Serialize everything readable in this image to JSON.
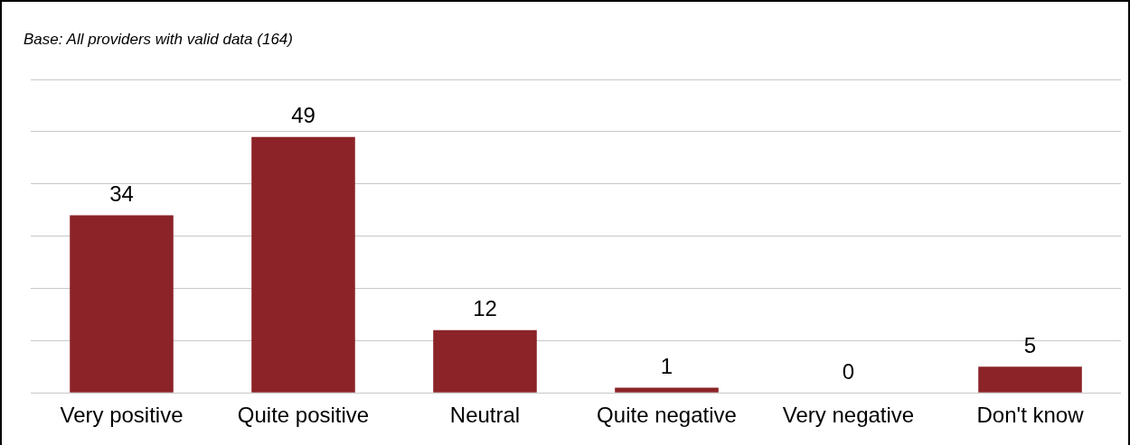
{
  "chart_data": {
    "type": "bar",
    "annotations": [
      "Base: All providers with valid data (164)"
    ],
    "categories": [
      "Very positive",
      "Quite positive",
      "Neutral",
      "Quite negative",
      "Very negative",
      "Don't know"
    ],
    "values": [
      34,
      49,
      12,
      1,
      0,
      5
    ],
    "color": "#8b2328",
    "ylim": [
      0,
      60
    ],
    "yticks": [
      {
        "value": 0,
        "label": null
      },
      {
        "value": 10,
        "label": null
      },
      {
        "value": 20,
        "label": null
      },
      {
        "value": 30,
        "label": null
      },
      {
        "value": 40,
        "label": null
      },
      {
        "value": 50,
        "label": null
      },
      {
        "value": 60,
        "label": null
      }
    ],
    "grid": "y",
    "legend": false,
    "data_labels": true,
    "tick_labels": "x"
  }
}
